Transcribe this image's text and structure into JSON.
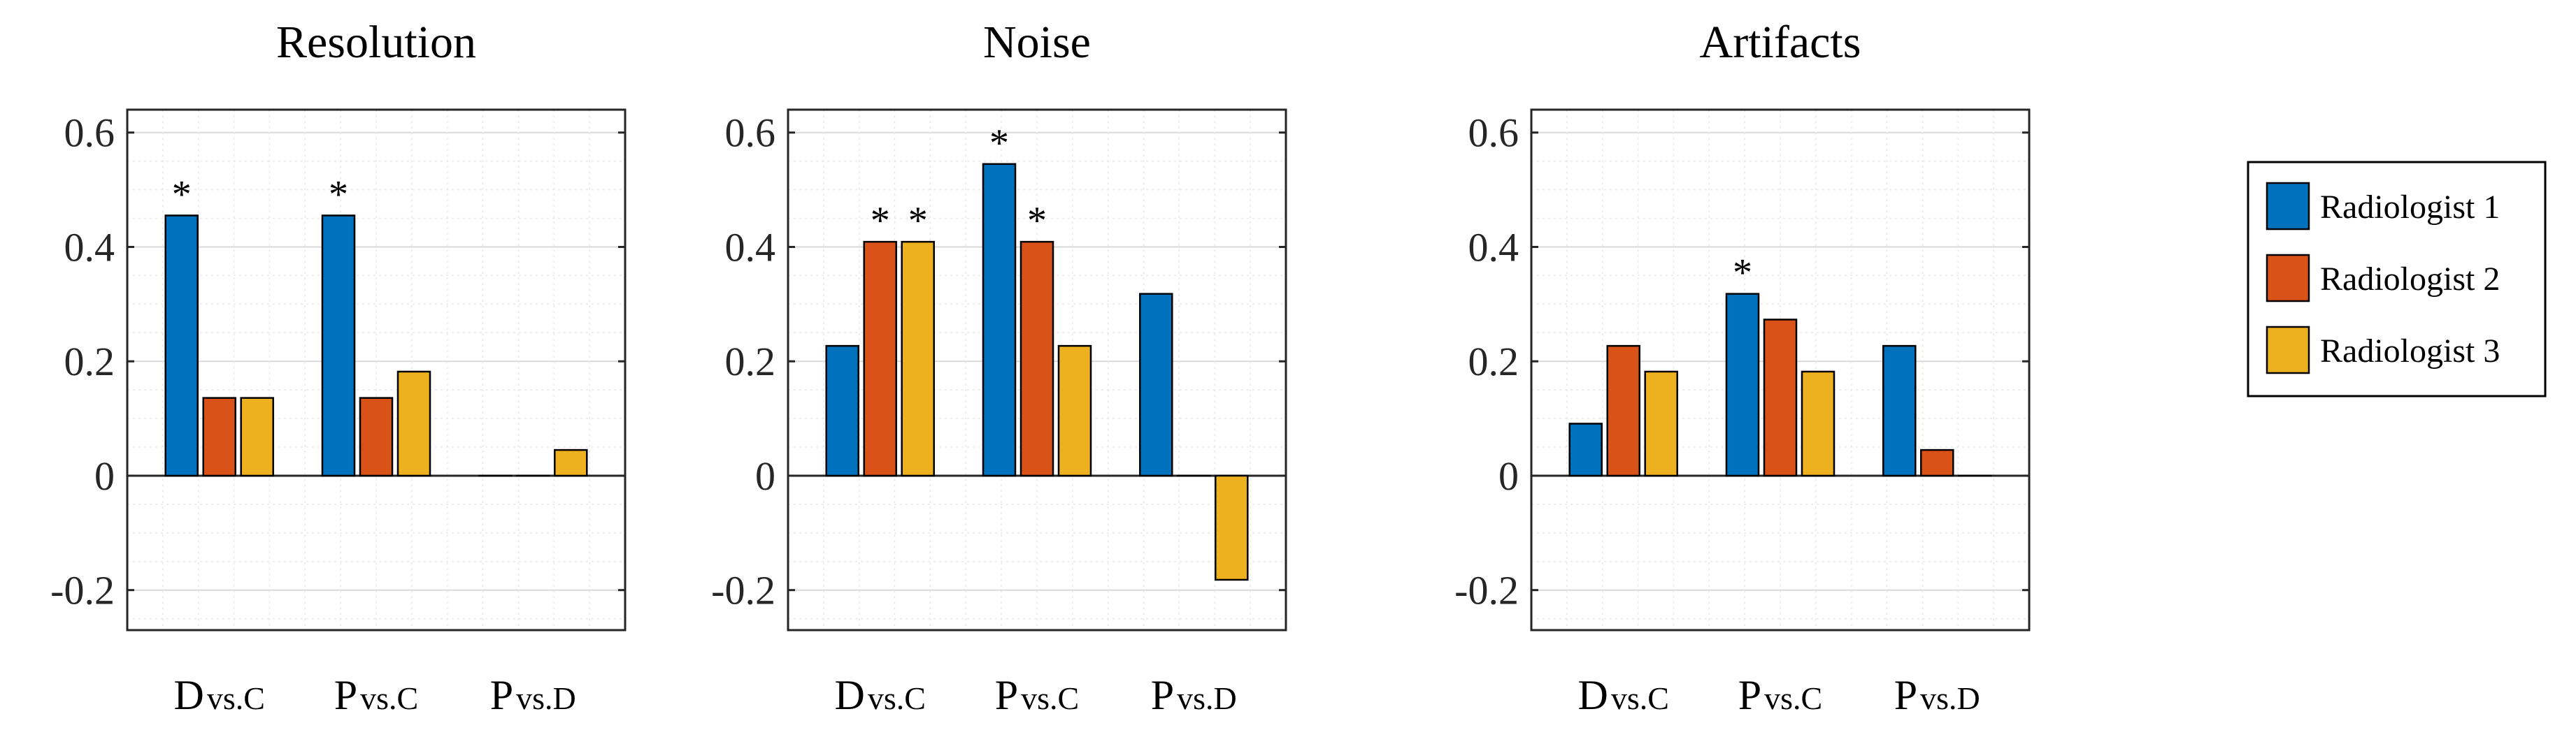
{
  "chart_data": [
    {
      "type": "bar",
      "title": "Resolution",
      "categories": [
        {
          "prefix": "D",
          "suffix": "vs.C"
        },
        {
          "prefix": "P",
          "suffix": "vs.C"
        },
        {
          "prefix": "P",
          "suffix": "vs.D"
        }
      ],
      "series": [
        {
          "name": "Radiologist 1",
          "values": [
            0.455,
            0.455,
            0.0
          ],
          "significant": [
            true,
            true,
            false
          ]
        },
        {
          "name": "Radiologist 2",
          "values": [
            0.136,
            0.136,
            0.0
          ],
          "significant": [
            false,
            false,
            false
          ]
        },
        {
          "name": "Radiologist 3",
          "values": [
            0.136,
            0.182,
            0.045
          ],
          "significant": [
            false,
            false,
            false
          ]
        }
      ],
      "ylim": [
        -0.27,
        0.64
      ],
      "yticks": [
        "0.6",
        "0.4",
        "0.2",
        "0",
        "-0.2"
      ],
      "grid": true
    },
    {
      "type": "bar",
      "title": "Noise",
      "categories": [
        {
          "prefix": "D",
          "suffix": "vs.C"
        },
        {
          "prefix": "P",
          "suffix": "vs.C"
        },
        {
          "prefix": "P",
          "suffix": "vs.D"
        }
      ],
      "series": [
        {
          "name": "Radiologist 1",
          "values": [
            0.227,
            0.545,
            0.318
          ],
          "significant": [
            false,
            true,
            false
          ]
        },
        {
          "name": "Radiologist 2",
          "values": [
            0.409,
            0.409,
            0.0
          ],
          "significant": [
            true,
            true,
            false
          ]
        },
        {
          "name": "Radiologist 3",
          "values": [
            0.409,
            0.227,
            -0.182
          ],
          "significant": [
            true,
            false,
            false
          ]
        }
      ],
      "ylim": [
        -0.27,
        0.64
      ],
      "yticks": [
        "0.6",
        "0.4",
        "0.2",
        "0",
        "-0.2"
      ],
      "grid": true
    },
    {
      "type": "bar",
      "title": "Artifacts",
      "categories": [
        {
          "prefix": "D",
          "suffix": "vs.C"
        },
        {
          "prefix": "P",
          "suffix": "vs.C"
        },
        {
          "prefix": "P",
          "suffix": "vs.D"
        }
      ],
      "series": [
        {
          "name": "Radiologist 1",
          "values": [
            0.091,
            0.318,
            0.227
          ],
          "significant": [
            false,
            true,
            false
          ]
        },
        {
          "name": "Radiologist 2",
          "values": [
            0.227,
            0.273,
            0.045
          ],
          "significant": [
            false,
            false,
            false
          ]
        },
        {
          "name": "Radiologist 3",
          "values": [
            0.182,
            0.182,
            0.0
          ],
          "significant": [
            false,
            false,
            false
          ]
        }
      ],
      "ylim": [
        -0.27,
        0.64
      ],
      "yticks": [
        "0.6",
        "0.4",
        "0.2",
        "0",
        "-0.2"
      ],
      "grid": true
    }
  ],
  "legend": {
    "placement": "right",
    "entries": [
      {
        "label": "Radiologist 1",
        "color": "#0072BD"
      },
      {
        "label": "Radiologist 2",
        "color": "#D95319"
      },
      {
        "label": "Radiologist 3",
        "color": "#EDB120"
      }
    ]
  },
  "significance_marker": "*"
}
